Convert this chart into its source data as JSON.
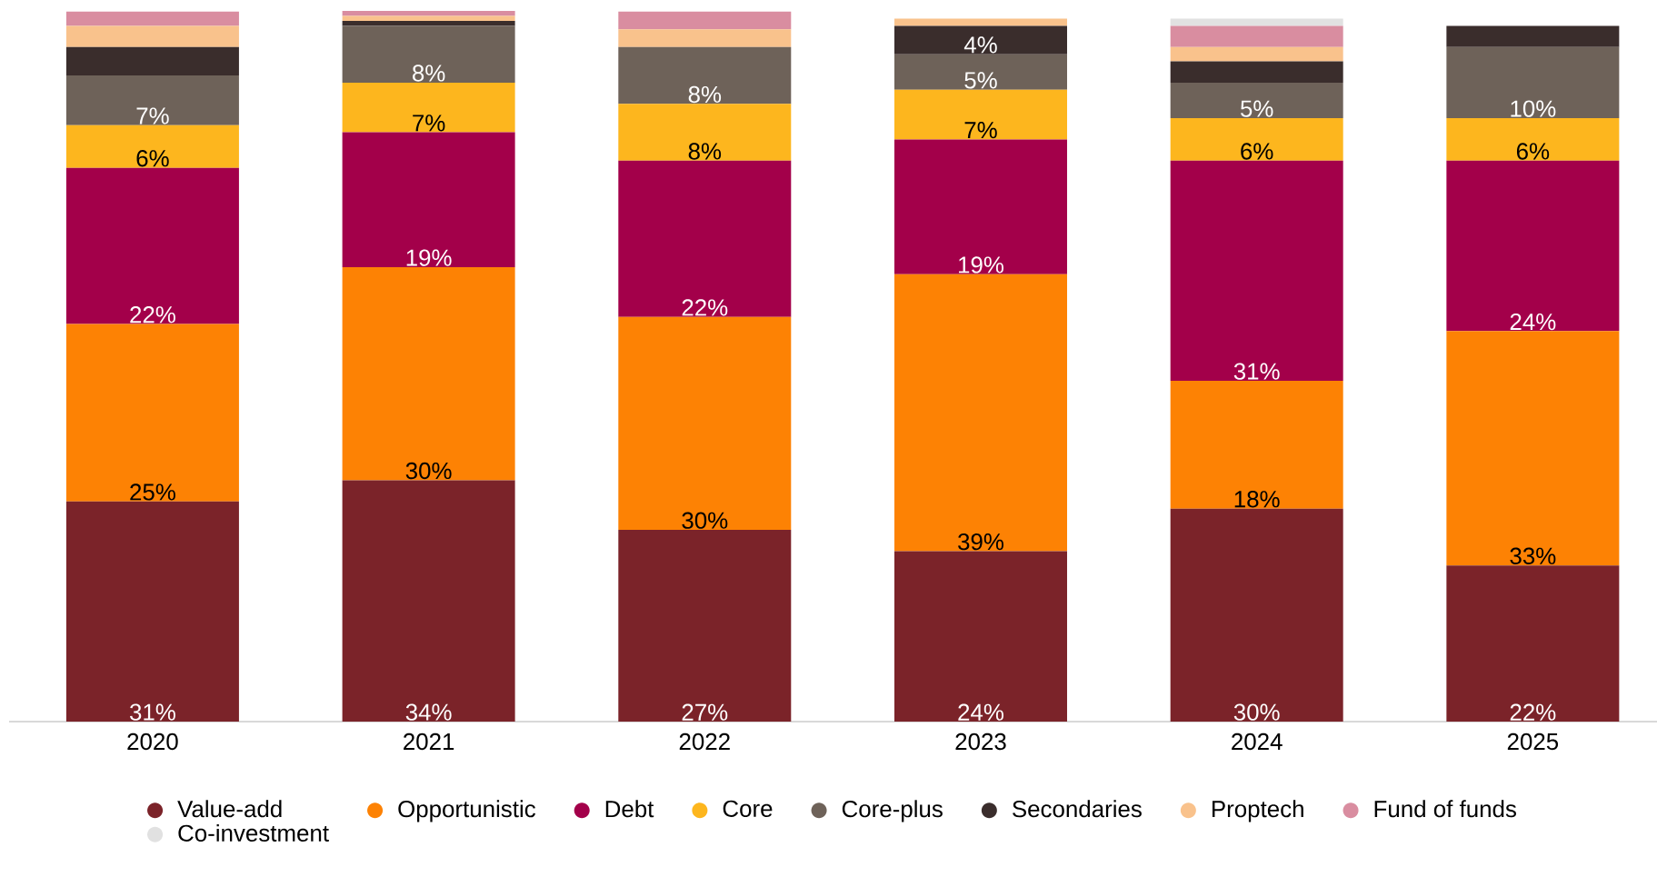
{
  "chart_data": {
    "type": "bar",
    "stacked": true,
    "categories": [
      "2020",
      "2021",
      "2022",
      "2023",
      "2024",
      "2025"
    ],
    "legend": "bottom",
    "series": [
      {
        "name": "Value-add",
        "color": "#7b2329",
        "values": [
          31,
          34,
          27,
          24,
          30,
          22
        ],
        "value_labels": [
          "31%",
          "34%",
          "27%",
          "24%",
          "30%",
          "22%"
        ]
      },
      {
        "name": "Opportunistic",
        "color": "#fd8204",
        "values": [
          25,
          30,
          30,
          39,
          18,
          33
        ],
        "value_labels": [
          "25%",
          "30%",
          "30%",
          "39%",
          "18%",
          "33%"
        ]
      },
      {
        "name": "Debt",
        "color": "#a3004a",
        "values": [
          22,
          19,
          22,
          19,
          31,
          24
        ],
        "value_labels": [
          "22%",
          "19%",
          "22%",
          "19%",
          "31%",
          "24%"
        ]
      },
      {
        "name": "Core",
        "color": "#fdb61e",
        "values": [
          6,
          7,
          8,
          7,
          6,
          6
        ],
        "value_labels": [
          "6%",
          "7%",
          "8%",
          "7%",
          "6%",
          "6%"
        ]
      },
      {
        "name": "Core-plus",
        "color": "#6e6259",
        "values": [
          7,
          8,
          8,
          5,
          5,
          10
        ],
        "value_labels": [
          "7%",
          "8%",
          "8%",
          "5%",
          "5%",
          "10%"
        ]
      },
      {
        "name": "Secondaries",
        "color": "#3a2d2c",
        "values": [
          4,
          0.7,
          null,
          4,
          3,
          3
        ],
        "value_labels": [
          null,
          null,
          null,
          "4%",
          null,
          null
        ]
      },
      {
        "name": "Proptech",
        "color": "#f9c28c",
        "values": [
          3,
          0.7,
          2.5,
          1,
          2,
          null
        ]
      },
      {
        "name": "Fund of funds",
        "color": "#d98da0",
        "values": [
          2,
          0.7,
          2.5,
          null,
          3,
          null
        ]
      },
      {
        "name": "Co-investment",
        "color": "#e1e1e1",
        "values": [
          null,
          null,
          null,
          null,
          1,
          null
        ]
      }
    ]
  }
}
